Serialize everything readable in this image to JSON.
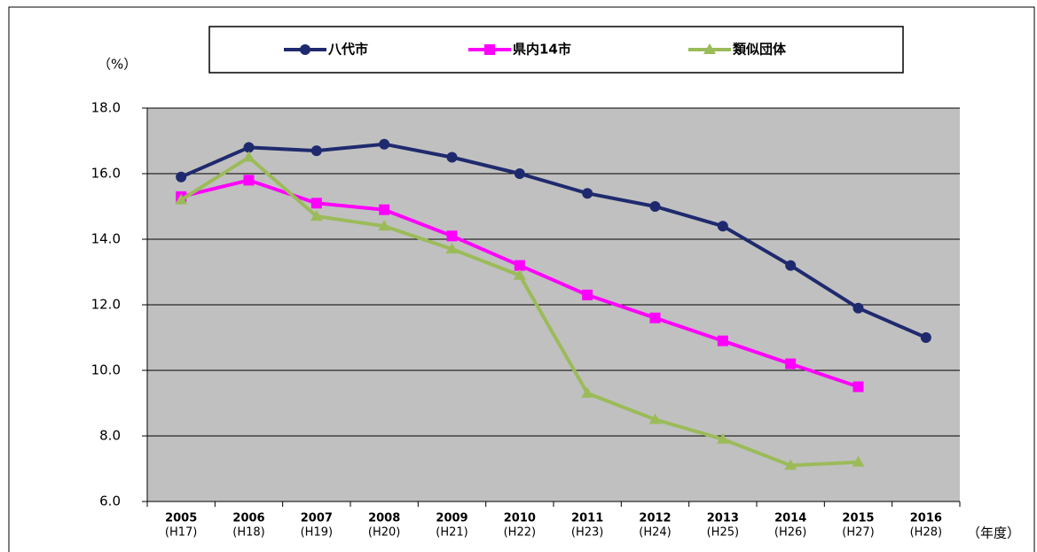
{
  "chart_data": {
    "type": "line",
    "y_unit_label": "（%）",
    "x_unit_label": "（年度）",
    "categories": [
      "2005",
      "2006",
      "2007",
      "2008",
      "2009",
      "2010",
      "2011",
      "2012",
      "2013",
      "2014",
      "2015",
      "2016"
    ],
    "era_labels": [
      "(H17)",
      "(H18)",
      "(H19)",
      "(H20)",
      "(H21)",
      "(H22)",
      "(H23)",
      "(H24)",
      "(H25)",
      "(H26)",
      "(H27)",
      "(H28)"
    ],
    "series": [
      {
        "name": "八代市",
        "color": "#1f2a6e",
        "marker": "circle",
        "values": [
          15.9,
          16.8,
          16.7,
          16.9,
          16.5,
          16.0,
          15.4,
          15.0,
          14.4,
          13.2,
          11.9,
          11.0
        ]
      },
      {
        "name": "県内14市",
        "color": "#ff00ff",
        "marker": "square",
        "values": [
          15.3,
          15.8,
          15.1,
          14.9,
          14.1,
          13.2,
          12.3,
          11.6,
          10.9,
          10.2,
          9.5,
          null
        ]
      },
      {
        "name": "類似団体",
        "color": "#9bbb59",
        "marker": "triangle",
        "values": [
          15.2,
          16.5,
          14.7,
          14.4,
          13.7,
          12.9,
          9.3,
          8.5,
          7.9,
          7.1,
          7.2,
          null
        ]
      }
    ],
    "ylim": [
      6,
      18
    ],
    "yticks": [
      {
        "value": 6,
        "label": "6.0"
      },
      {
        "value": 8,
        "label": "8.0"
      },
      {
        "value": 10,
        "label": "10.0"
      },
      {
        "value": 12,
        "label": "12.0"
      },
      {
        "value": 14,
        "label": "14.0"
      },
      {
        "value": 16,
        "label": "16.0"
      },
      {
        "value": 18,
        "label": "18.0"
      }
    ],
    "grid": true,
    "legend_position": "top"
  }
}
